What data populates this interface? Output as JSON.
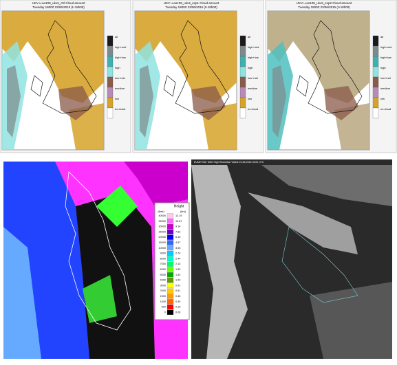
{
  "panels": [
    {
      "title": "UKV u-ao109_ukv2_ctrl Cloud amount",
      "subtitle": "Tuesday 1800Z 23/06/2015 (t+18h00)"
    },
    {
      "title": "UKV u-ao109_ukv2_exp1 Cloud amount",
      "subtitle": "Tuesday 1800Z 23/06/2015 (t+18h00)"
    },
    {
      "title": "UKV u-ao109_ukv2_exp2 Cloud amount",
      "subtitle": "Tuesday 1800Z 23/06/2015 (t+18h00)"
    }
  ],
  "cloud_legend": [
    {
      "label": "all",
      "color": "#1a1a1a"
    },
    {
      "label": "high+mid",
      "color": "#7d8a8c"
    },
    {
      "label": "high+low",
      "color": "#3fb0b0"
    },
    {
      "label": "high",
      "color": "#8fe3e0"
    },
    {
      "label": "low+mid",
      "color": "#8a5a4a"
    },
    {
      "label": "medium",
      "color": "#b78ab8"
    },
    {
      "label": "low",
      "color": "#d6a32a"
    },
    {
      "label": "no cloud",
      "color": "#ffffff"
    }
  ],
  "height_legend": {
    "title": "Height",
    "feet_label": "(feet)",
    "km_label": "(km)",
    "rows": [
      {
        "feet": 40000,
        "km": "12.19",
        "color": "#ffc8f0"
      },
      {
        "feet": 35000,
        "km": "10.67",
        "color": "#ff66ff"
      },
      {
        "feet": 30000,
        "km": "9.14",
        "color": "#cc00cc"
      },
      {
        "feet": 25000,
        "km": "7.62",
        "color": "#6600cc"
      },
      {
        "feet": 20000,
        "km": "6.10",
        "color": "#0000ff"
      },
      {
        "feet": 15000,
        "km": "4.57",
        "color": "#3366ff"
      },
      {
        "feet": 10000,
        "km": "3.05",
        "color": "#66aaff"
      },
      {
        "feet": 9000,
        "km": "2.74",
        "color": "#00ccff"
      },
      {
        "feet": 8000,
        "km": "2.44",
        "color": "#00ffcc"
      },
      {
        "feet": 7000,
        "km": "2.13",
        "color": "#00ff66"
      },
      {
        "feet": 6000,
        "km": "1.83",
        "color": "#66ff00"
      },
      {
        "feet": 5000,
        "km": "1.52",
        "color": "#00aa00"
      },
      {
        "feet": 4000,
        "km": "1.22",
        "color": "#669900"
      },
      {
        "feet": 3000,
        "km": "0.91",
        "color": "#ffff00"
      },
      {
        "feet": 2000,
        "km": "0.61",
        "color": "#ffcc00"
      },
      {
        "feet": 1500,
        "km": "0.46",
        "color": "#ff9900"
      },
      {
        "feet": 1000,
        "km": "0.30",
        "color": "#ff6600"
      },
      {
        "feet": 500,
        "km": "0.15",
        "color": "#ff0000"
      },
      {
        "feet": 0,
        "km": "0.00",
        "color": "#000000"
      }
    ]
  },
  "satellite_title": "EUMETSAT MSG High Resolution Visible 23-06-2015 18:00 UTC"
}
